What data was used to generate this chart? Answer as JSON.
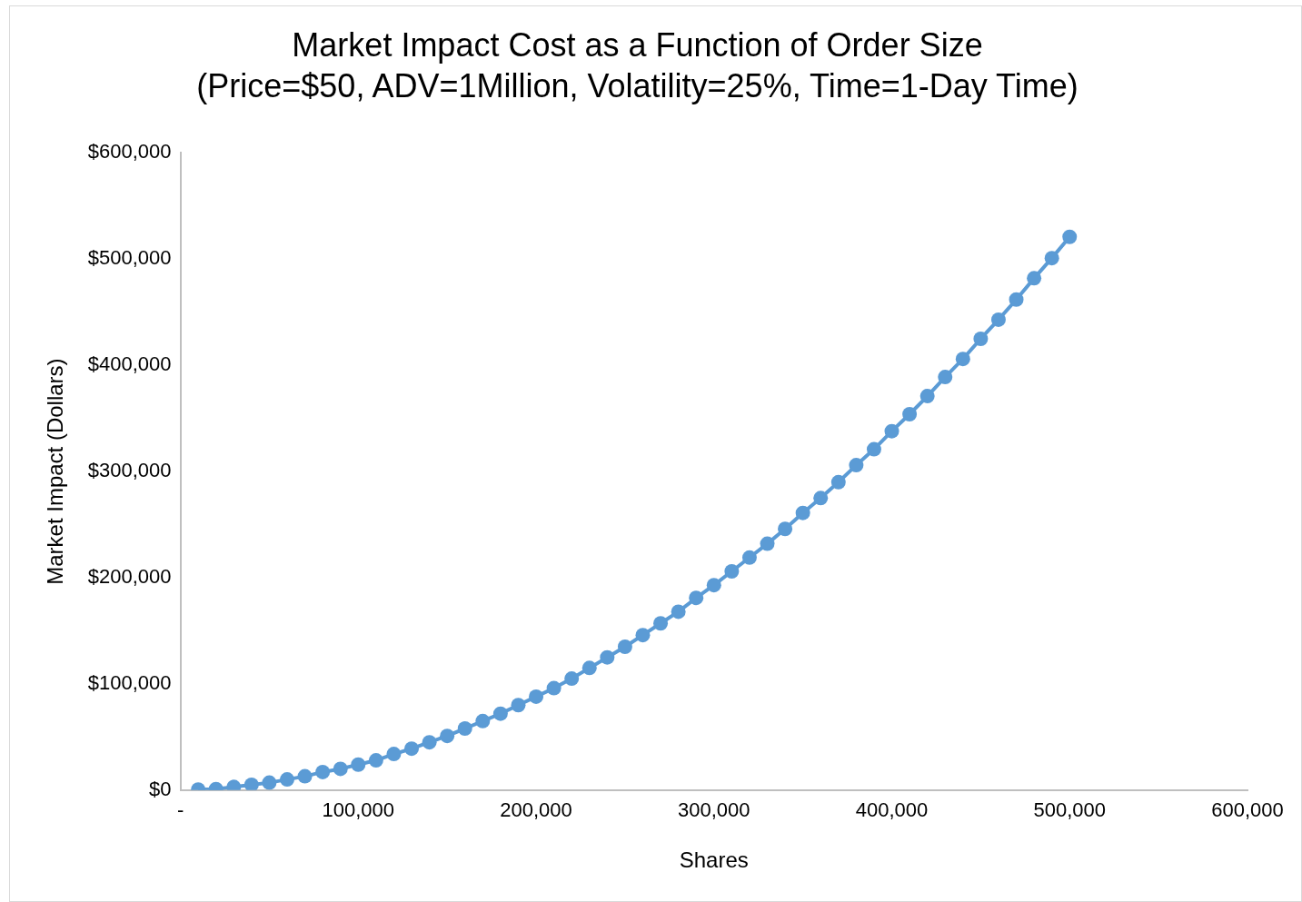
{
  "chart_data": {
    "type": "line",
    "title": "Market Impact Cost as a Function of Order Size",
    "subtitle": "(Price=$50, ADV=1Million, Volatility=25%, Time=1-Day Time)",
    "xlabel": "Shares",
    "ylabel": "Market Impact (Dollars)",
    "x": [
      10000,
      20000,
      30000,
      40000,
      50000,
      60000,
      70000,
      80000,
      90000,
      100000,
      110000,
      120000,
      130000,
      140000,
      150000,
      160000,
      170000,
      180000,
      190000,
      200000,
      210000,
      220000,
      230000,
      240000,
      250000,
      260000,
      270000,
      280000,
      290000,
      300000,
      310000,
      320000,
      330000,
      340000,
      350000,
      360000,
      370000,
      380000,
      390000,
      400000,
      410000,
      420000,
      430000,
      440000,
      450000,
      460000,
      470000,
      480000,
      490000,
      500000
    ],
    "series": [
      {
        "color": "#5b9bd5",
        "values": [
          500,
          1000,
          3000,
          5000,
          7000,
          10000,
          13000,
          17000,
          20000,
          24000,
          28000,
          34000,
          39000,
          45000,
          51000,
          58000,
          65000,
          72000,
          80000,
          88000,
          96000,
          105000,
          115000,
          125000,
          135000,
          146000,
          157000,
          168000,
          181000,
          193000,
          206000,
          219000,
          232000,
          246000,
          261000,
          275000,
          290000,
          306000,
          321000,
          338000,
          354000,
          371000,
          389000,
          406000,
          425000,
          443000,
          462000,
          482000,
          501000,
          521000
        ]
      }
    ],
    "xlim": [
      0,
      600000
    ],
    "xticks": [
      {
        "value": 0,
        "label": "-"
      },
      {
        "value": 100000,
        "label": "100,000"
      },
      {
        "value": 200000,
        "label": "200,000"
      },
      {
        "value": 300000,
        "label": "300,000"
      },
      {
        "value": 400000,
        "label": "400,000"
      },
      {
        "value": 500000,
        "label": "500,000"
      },
      {
        "value": 600000,
        "label": "600,000"
      }
    ],
    "ylim": [
      0,
      600000
    ],
    "yticks": [
      {
        "value": 0,
        "label": "$0"
      },
      {
        "value": 100000,
        "label": "$100,000"
      },
      {
        "value": 200000,
        "label": "$200,000"
      },
      {
        "value": 300000,
        "label": "$300,000"
      },
      {
        "value": 400000,
        "label": "$400,000"
      },
      {
        "value": 500000,
        "label": "$500,000"
      },
      {
        "value": 600000,
        "label": "$600,000"
      }
    ],
    "grid": false,
    "legend": false,
    "marker": "circle",
    "line_style": "solid"
  }
}
